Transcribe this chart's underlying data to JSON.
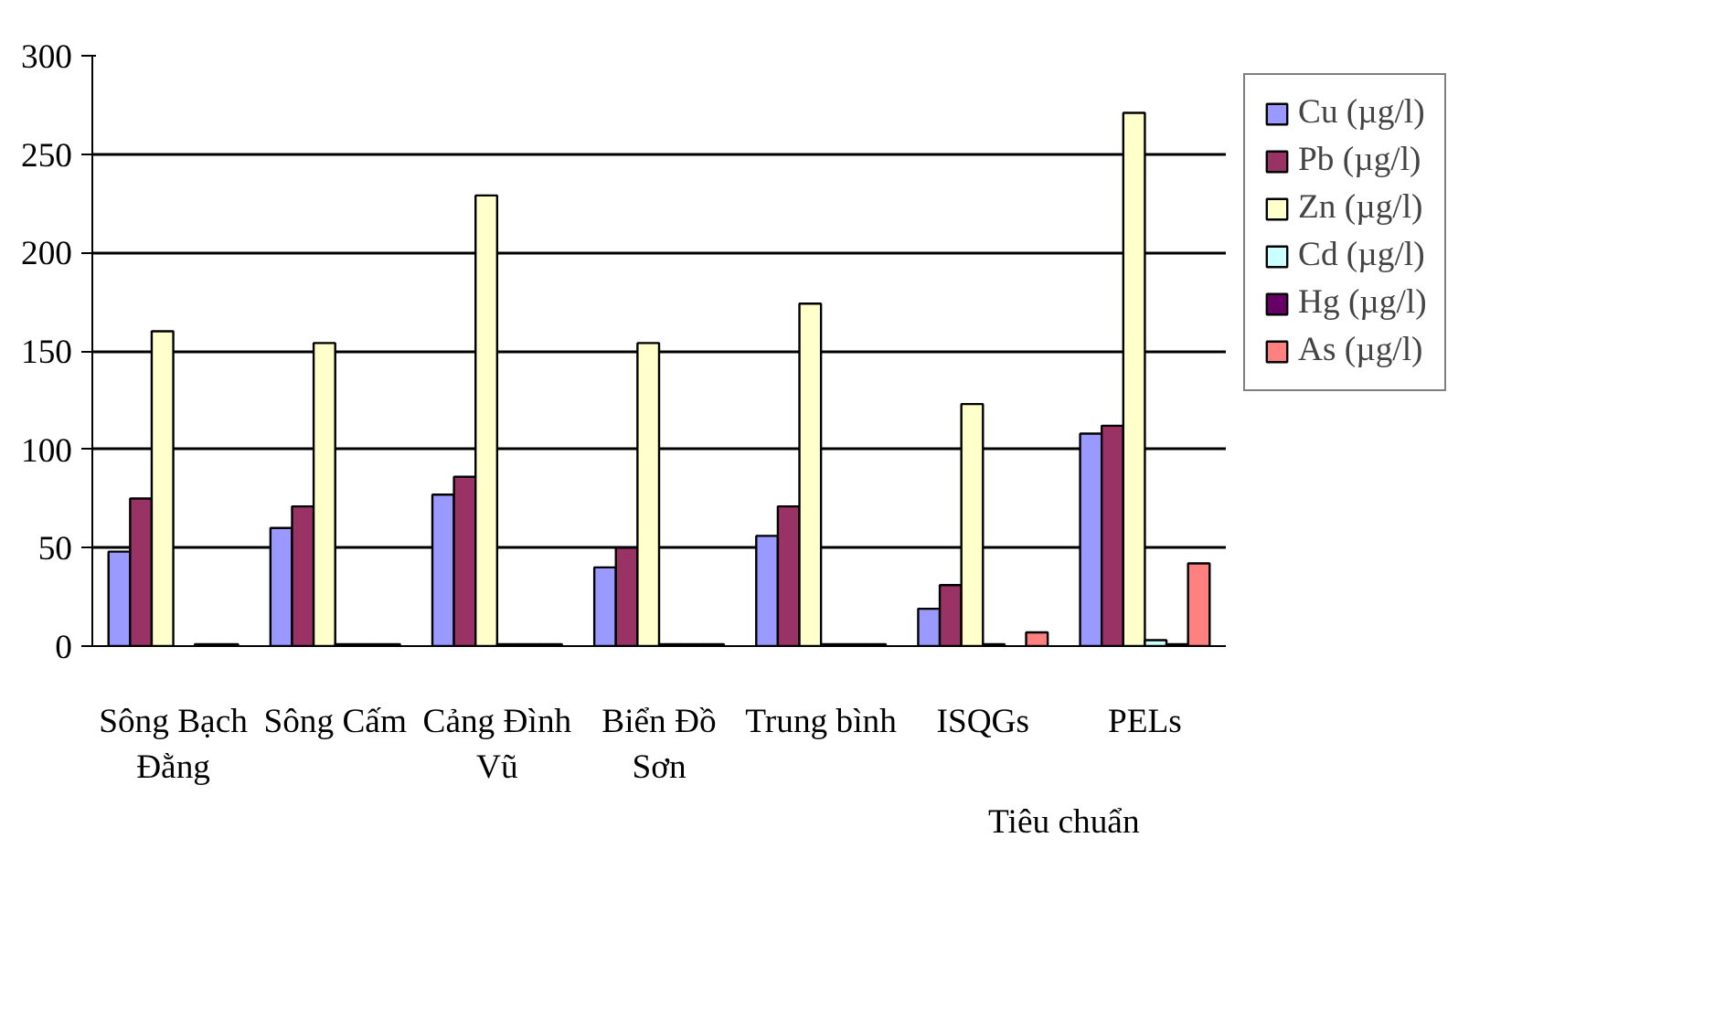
{
  "chart_data": {
    "type": "bar",
    "categories": [
      "Sông Bạch Đằng",
      "Sông Cấm",
      "Cảng Đình Vũ",
      "Biển Đồ Sơn",
      "Trung bình",
      "ISQGs",
      "PELs"
    ],
    "series": [
      {
        "name": "Cu (µg/l)",
        "color": "#9999ff",
        "values": [
          48,
          60,
          77,
          40,
          56,
          19,
          108
        ]
      },
      {
        "name": "Pb (µg/l)",
        "color": "#993366",
        "values": [
          75,
          71,
          86,
          50,
          71,
          31,
          112
        ]
      },
      {
        "name": "Zn (µg/l)",
        "color": "#ffffcc",
        "values": [
          160,
          154,
          229,
          154,
          174,
          123,
          271
        ]
      },
      {
        "name": "Cd (µg/l)",
        "color": "#ccffff",
        "values": [
          null,
          1,
          1,
          1,
          1,
          1,
          3
        ]
      },
      {
        "name": "Hg (µg/l)",
        "color": "#660066",
        "values": [
          1,
          1,
          1,
          1,
          1,
          null,
          1
        ]
      },
      {
        "name": "As (µg/l)",
        "color": "#ff8080",
        "values": [
          1,
          1,
          1,
          1,
          1,
          7,
          42
        ]
      }
    ],
    "ylim": [
      0,
      300
    ],
    "yticks": [
      0,
      50,
      100,
      150,
      200,
      250,
      300
    ],
    "grid": "y",
    "legend": "right",
    "annotations": [
      {
        "text": "Tiêu chuẩn"
      }
    ]
  }
}
